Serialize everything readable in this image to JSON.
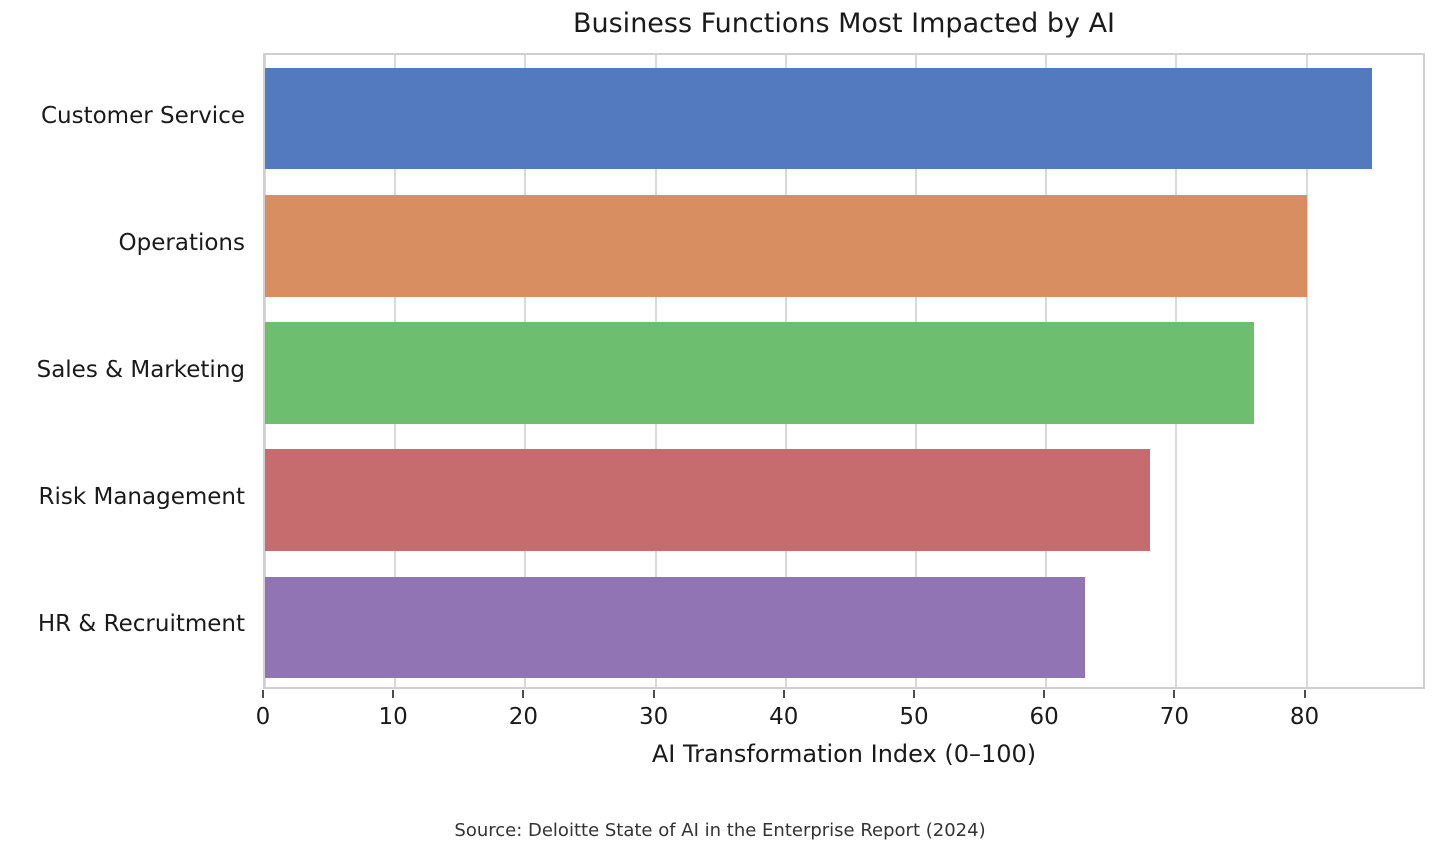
{
  "chart_data": {
    "type": "bar",
    "orientation": "horizontal",
    "title": "Business Functions Most Impacted by AI",
    "categories": [
      "Customer Service",
      "Operations",
      "Sales & Marketing",
      "Risk Management",
      "HR & Recruitment"
    ],
    "values": [
      85,
      80,
      76,
      68,
      63
    ],
    "bar_colors": [
      "#5379BE",
      "#D88E60",
      "#6DBE6E",
      "#C66C6E",
      "#9174B4"
    ],
    "xlabel": "AI Transformation Index (0–100)",
    "ylabel": "",
    "xticks": [
      0,
      10,
      20,
      30,
      40,
      50,
      60,
      70,
      80
    ],
    "xlim": [
      0,
      89.25
    ],
    "grid": "vertical",
    "legend_position": "none",
    "bar_height_ratio": 0.8
  },
  "source_note": "Source: Deloitte State of AI in the Enterprise Report (2024)",
  "colors": {
    "grid": "#d9d9d9",
    "spine": "#cfcfcf",
    "tick": "#4d4d4d",
    "text": "#1a1a1a",
    "source_text": "#333333",
    "background": "#ffffff"
  }
}
